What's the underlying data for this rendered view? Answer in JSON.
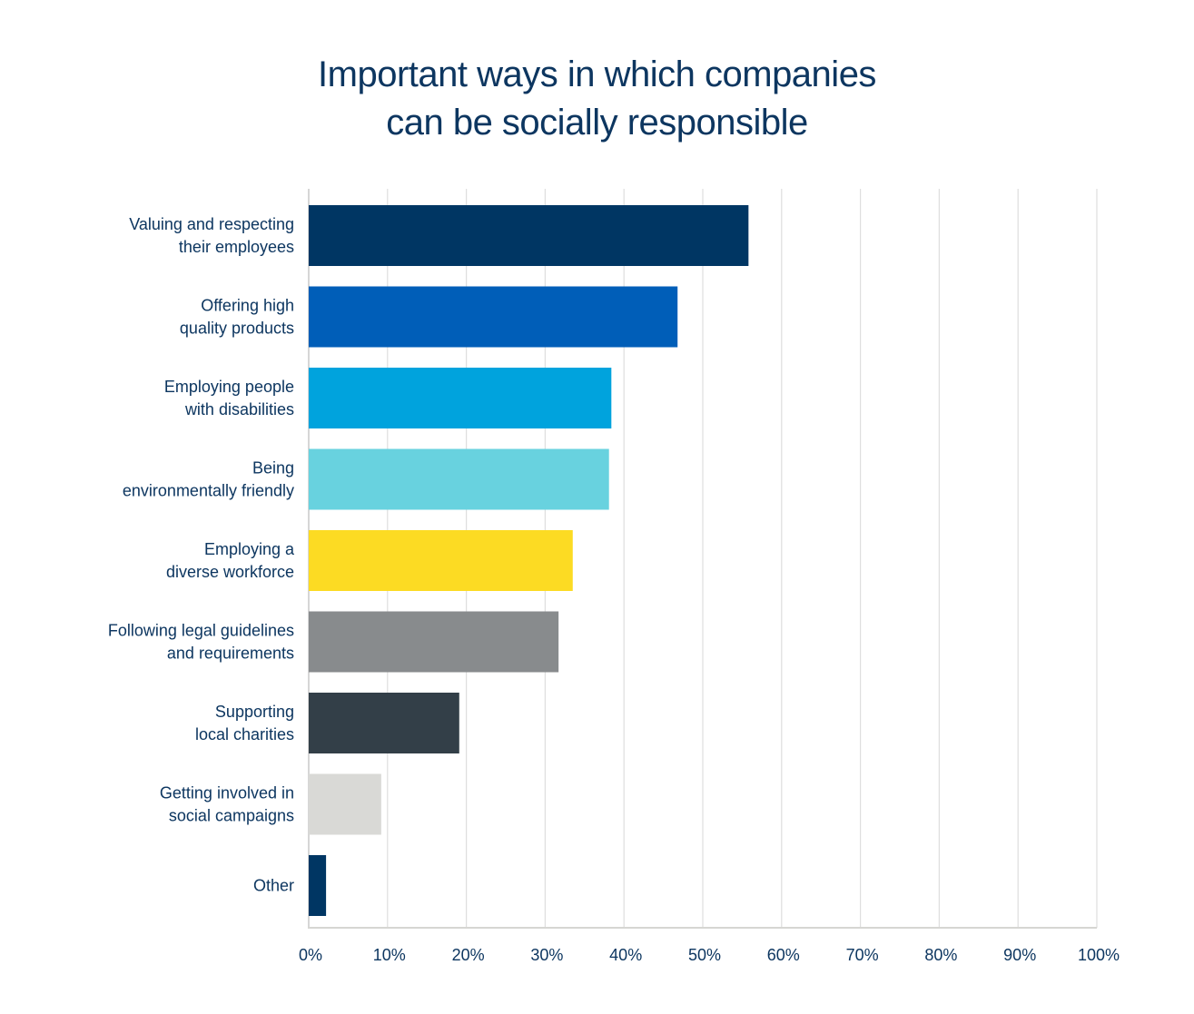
{
  "chart_data": {
    "type": "bar",
    "orientation": "horizontal",
    "title": "Important ways in which companies can be socially responsible",
    "title_lines": [
      "Important ways in which companies",
      "can be socially responsible"
    ],
    "xlabel": "",
    "ylabel": "",
    "xlim": [
      0,
      100
    ],
    "x_ticks": [
      "0%",
      "10%",
      "20%",
      "30%",
      "40%",
      "50%",
      "60%",
      "70%",
      "80%",
      "90%",
      "100%"
    ],
    "grid": "vertical",
    "legend": "none",
    "categories": [
      [
        "Valuing and respecting",
        "their employees"
      ],
      [
        "Offering high",
        "quality products"
      ],
      [
        "Employing people",
        "with disabilities"
      ],
      [
        "Being",
        "environmentally friendly"
      ],
      [
        "Employing a",
        "diverse workforce"
      ],
      [
        "Following legal guidelines",
        "and requirements"
      ],
      [
        "Supporting",
        "local charities"
      ],
      [
        "Getting involved in",
        "social  campaigns"
      ],
      [
        "Other"
      ]
    ],
    "values": [
      55.8,
      46.8,
      38.4,
      38.1,
      33.5,
      31.7,
      19.1,
      9.2,
      2.2
    ],
    "colors": [
      "#003663",
      "#005eb8",
      "#00a3dd",
      "#68d2df",
      "#fcdb23",
      "#888b8d",
      "#333f48",
      "#d9d9d6",
      "#003663"
    ]
  }
}
